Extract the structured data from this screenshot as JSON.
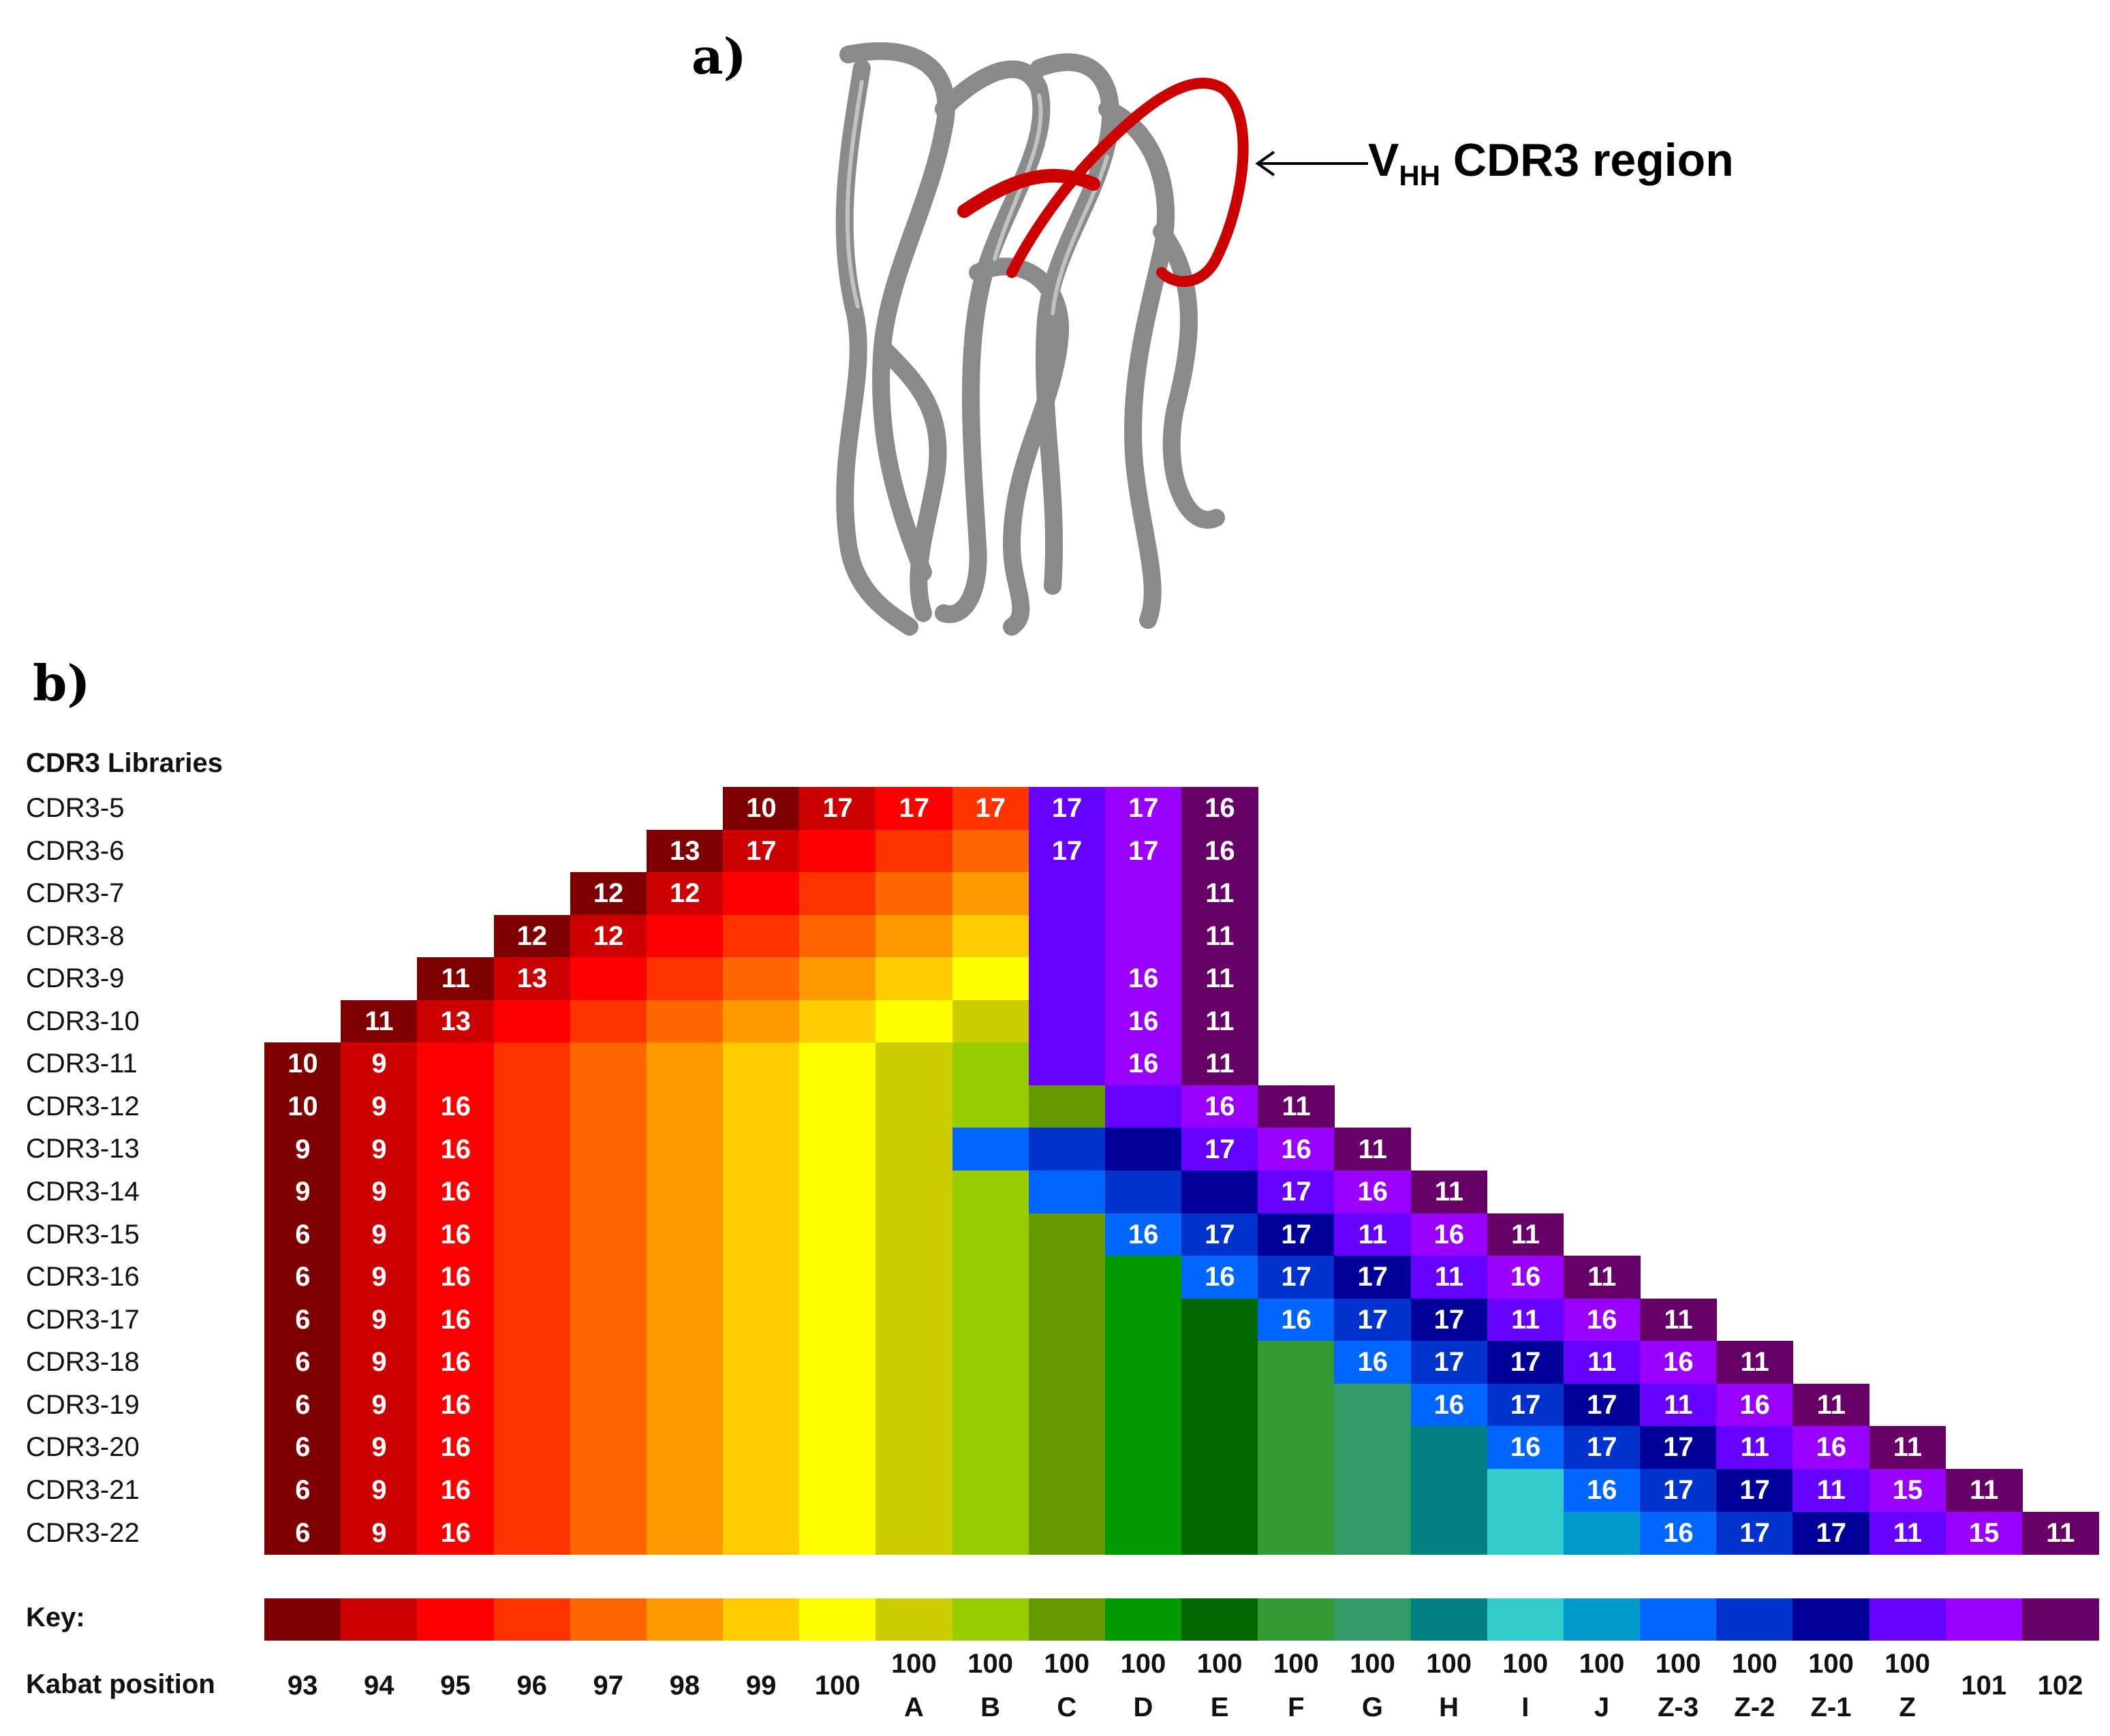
{
  "panel_a": {
    "label": "a)",
    "annotation_main": "V",
    "annotation_sub": "HH",
    "annotation_rest": " CDR3 region"
  },
  "panel_b": {
    "label": "b)"
  },
  "chart_data": {
    "type": "heatmap",
    "title": "CDR3 Libraries",
    "row_header": "CDR3 Libraries",
    "key_label": "Key:",
    "kabat_label": "Kabat position",
    "kabat_positions": [
      [
        "93",
        ""
      ],
      [
        "94",
        ""
      ],
      [
        "95",
        ""
      ],
      [
        "96",
        ""
      ],
      [
        "97",
        ""
      ],
      [
        "98",
        ""
      ],
      [
        "99",
        ""
      ],
      [
        "100",
        ""
      ],
      [
        "100",
        "A"
      ],
      [
        "100",
        "B"
      ],
      [
        "100",
        "C"
      ],
      [
        "100",
        "D"
      ],
      [
        "100",
        "E"
      ],
      [
        "100",
        "F"
      ],
      [
        "100",
        "G"
      ],
      [
        "100",
        "H"
      ],
      [
        "100",
        "I"
      ],
      [
        "100",
        "J"
      ],
      [
        "100",
        "Z-3"
      ],
      [
        "100",
        "Z-2"
      ],
      [
        "100",
        "Z-1"
      ],
      [
        "100",
        "Z"
      ],
      [
        "101",
        ""
      ],
      [
        "102",
        ""
      ]
    ],
    "key_colors": [
      "#7f0000",
      "#cc0000",
      "#ff0000",
      "#ff3300",
      "#ff6600",
      "#ff9900",
      "#ffcc00",
      "#ffff00",
      "#cccc00",
      "#99cc00",
      "#669900",
      "#009900",
      "#006600",
      "#339933",
      "#339966",
      "#008080",
      "#33cccc",
      "#0099cc",
      "#0066ff",
      "#0033cc",
      "#000099",
      "#6600ff",
      "#9900ff",
      "#660066"
    ],
    "rows": [
      {
        "library": "CDR3-5",
        "start": 6,
        "colors": [
          0,
          1,
          2,
          3,
          21,
          22,
          23
        ],
        "values": [
          "10",
          "17",
          "17",
          "17",
          "17",
          "17",
          "16"
        ]
      },
      {
        "library": "CDR3-6",
        "start": 5,
        "colors": [
          0,
          1,
          2,
          3,
          4,
          21,
          22,
          23
        ],
        "values": [
          "13",
          "17",
          "",
          "",
          "",
          "17",
          "17",
          "16"
        ]
      },
      {
        "library": "CDR3-7",
        "start": 4,
        "colors": [
          0,
          1,
          2,
          3,
          4,
          5,
          21,
          22,
          23
        ],
        "values": [
          "12",
          "12",
          "",
          "",
          "",
          "",
          "",
          "",
          "11"
        ]
      },
      {
        "library": "CDR3-8",
        "start": 3,
        "colors": [
          0,
          1,
          2,
          3,
          4,
          5,
          6,
          21,
          22,
          23
        ],
        "values": [
          "12",
          "12",
          "",
          "",
          "",
          "",
          "",
          "",
          "",
          "11"
        ]
      },
      {
        "library": "CDR3-9",
        "start": 2,
        "colors": [
          0,
          1,
          2,
          3,
          4,
          5,
          6,
          7,
          21,
          22,
          23
        ],
        "values": [
          "11",
          "13",
          "",
          "",
          "",
          "",
          "",
          "",
          "",
          "16",
          "11"
        ]
      },
      {
        "library": "CDR3-10",
        "start": 1,
        "colors": [
          0,
          1,
          2,
          3,
          4,
          5,
          6,
          7,
          8,
          21,
          22,
          23
        ],
        "values": [
          "11",
          "13",
          "",
          "",
          "",
          "",
          "",
          "",
          "",
          "",
          "16",
          "11"
        ]
      },
      {
        "library": "CDR3-11",
        "start": 0,
        "colors": [
          0,
          1,
          2,
          3,
          4,
          5,
          6,
          7,
          8,
          9,
          21,
          22,
          23
        ],
        "values": [
          "10",
          "9",
          "",
          "",
          "",
          "",
          "",
          "",
          "",
          "",
          "",
          "16",
          "11"
        ]
      },
      {
        "library": "CDR3-12",
        "start": 0,
        "colors": [
          0,
          1,
          2,
          3,
          4,
          5,
          6,
          7,
          8,
          9,
          10,
          21,
          22,
          23
        ],
        "values": [
          "10",
          "9",
          "16",
          "",
          "",
          "",
          "",
          "",
          "",
          "",
          "",
          "",
          "16",
          "11"
        ]
      },
      {
        "library": "CDR3-13",
        "start": 0,
        "colors": [
          0,
          1,
          2,
          3,
          4,
          5,
          6,
          7,
          8,
          18,
          19,
          20,
          21,
          22,
          23
        ],
        "values": [
          "9",
          "9",
          "16",
          "",
          "",
          "",
          "",
          "",
          "",
          "",
          "",
          "",
          "17",
          "16",
          "11"
        ]
      },
      {
        "library": "CDR3-14",
        "start": 0,
        "colors": [
          0,
          1,
          2,
          3,
          4,
          5,
          6,
          7,
          8,
          9,
          18,
          19,
          20,
          21,
          22,
          23
        ],
        "values": [
          "9",
          "9",
          "16",
          "",
          "",
          "",
          "",
          "",
          "",
          "",
          "",
          "",
          "",
          "17",
          "16",
          "11"
        ]
      },
      {
        "library": "CDR3-15",
        "start": 0,
        "colors": [
          0,
          1,
          2,
          3,
          4,
          5,
          6,
          7,
          8,
          9,
          10,
          18,
          19,
          20,
          21,
          22,
          23
        ],
        "values": [
          "6",
          "9",
          "16",
          "",
          "",
          "",
          "",
          "",
          "",
          "",
          "",
          "16",
          "17",
          "17",
          "11",
          "16",
          "11"
        ]
      },
      {
        "library": "CDR3-16",
        "start": 0,
        "colors": [
          0,
          1,
          2,
          3,
          4,
          5,
          6,
          7,
          8,
          9,
          10,
          11,
          18,
          19,
          20,
          21,
          22,
          23
        ],
        "values": [
          "6",
          "9",
          "16",
          "",
          "",
          "",
          "",
          "",
          "",
          "",
          "",
          "",
          "16",
          "17",
          "17",
          "11",
          "16",
          "11"
        ]
      },
      {
        "library": "CDR3-17",
        "start": 0,
        "colors": [
          0,
          1,
          2,
          3,
          4,
          5,
          6,
          7,
          8,
          9,
          10,
          11,
          12,
          18,
          19,
          20,
          21,
          22,
          23
        ],
        "values": [
          "6",
          "9",
          "16",
          "",
          "",
          "",
          "",
          "",
          "",
          "",
          "",
          "",
          "",
          "16",
          "17",
          "17",
          "11",
          "16",
          "11"
        ]
      },
      {
        "library": "CDR3-18",
        "start": 0,
        "colors": [
          0,
          1,
          2,
          3,
          4,
          5,
          6,
          7,
          8,
          9,
          10,
          11,
          12,
          13,
          18,
          19,
          20,
          21,
          22,
          23
        ],
        "values": [
          "6",
          "9",
          "16",
          "",
          "",
          "",
          "",
          "",
          "",
          "",
          "",
          "",
          "",
          "",
          "16",
          "17",
          "17",
          "11",
          "16",
          "11"
        ]
      },
      {
        "library": "CDR3-19",
        "start": 0,
        "colors": [
          0,
          1,
          2,
          3,
          4,
          5,
          6,
          7,
          8,
          9,
          10,
          11,
          12,
          13,
          14,
          18,
          19,
          20,
          21,
          22,
          23
        ],
        "values": [
          "6",
          "9",
          "16",
          "",
          "",
          "",
          "",
          "",
          "",
          "",
          "",
          "",
          "",
          "",
          "",
          "16",
          "17",
          "17",
          "11",
          "16",
          "11"
        ]
      },
      {
        "library": "CDR3-20",
        "start": 0,
        "colors": [
          0,
          1,
          2,
          3,
          4,
          5,
          6,
          7,
          8,
          9,
          10,
          11,
          12,
          13,
          14,
          15,
          18,
          19,
          20,
          21,
          22,
          23
        ],
        "values": [
          "6",
          "9",
          "16",
          "",
          "",
          "",
          "",
          "",
          "",
          "",
          "",
          "",
          "",
          "",
          "",
          "",
          "16",
          "17",
          "17",
          "11",
          "16",
          "11"
        ]
      },
      {
        "library": "CDR3-21",
        "start": 0,
        "colors": [
          0,
          1,
          2,
          3,
          4,
          5,
          6,
          7,
          8,
          9,
          10,
          11,
          12,
          13,
          14,
          15,
          16,
          18,
          19,
          20,
          21,
          22,
          23
        ],
        "values": [
          "6",
          "9",
          "16",
          "",
          "",
          "",
          "",
          "",
          "",
          "",
          "",
          "",
          "",
          "",
          "",
          "",
          "",
          "16",
          "17",
          "17",
          "11",
          "15",
          "11"
        ]
      },
      {
        "library": "CDR3-22",
        "start": 0,
        "colors": [
          0,
          1,
          2,
          3,
          4,
          5,
          6,
          7,
          8,
          9,
          10,
          11,
          12,
          13,
          14,
          15,
          16,
          17,
          18,
          19,
          20,
          21,
          22,
          23
        ],
        "values": [
          "6",
          "9",
          "16",
          "",
          "",
          "",
          "",
          "",
          "",
          "",
          "",
          "",
          "",
          "",
          "",
          "",
          "",
          "",
          "16",
          "17",
          "17",
          "11",
          "15",
          "11"
        ]
      }
    ]
  }
}
